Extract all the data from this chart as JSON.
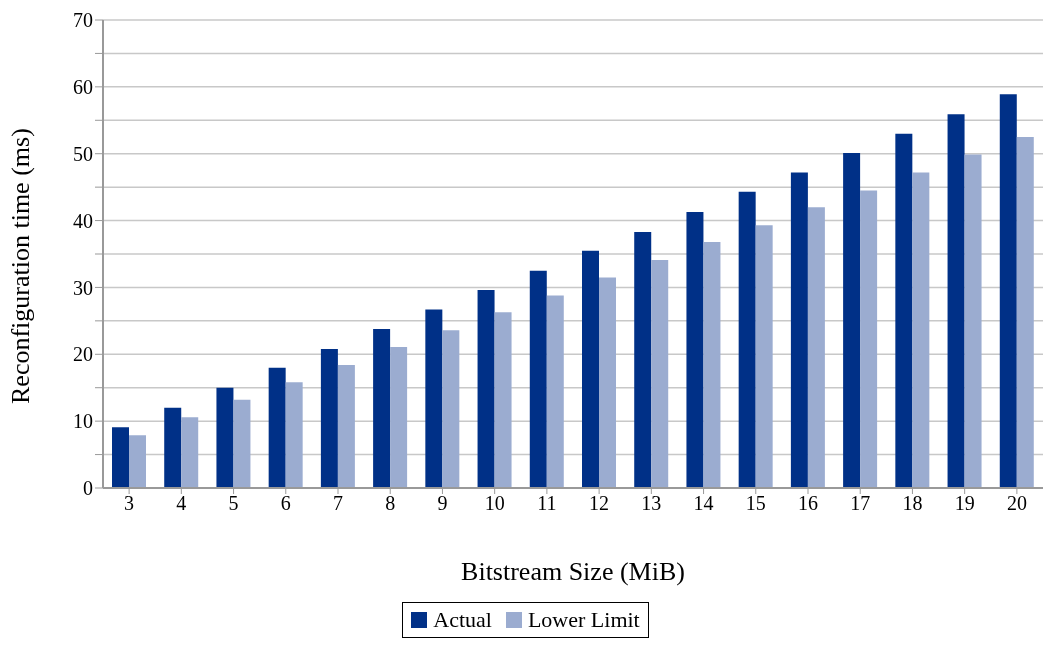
{
  "chart_data": {
    "type": "bar",
    "xlabel": "Bitstream Size (MiB)",
    "ylabel": "Reconfiguration time (ms)",
    "categories": [
      "3",
      "4",
      "5",
      "6",
      "7",
      "8",
      "9",
      "10",
      "11",
      "12",
      "13",
      "14",
      "15",
      "16",
      "17",
      "18",
      "19",
      "20"
    ],
    "series": [
      {
        "name": "Actual",
        "color": "#003087",
        "values": [
          9.1,
          12,
          15,
          18,
          20.8,
          23.8,
          26.7,
          29.6,
          32.5,
          35.5,
          38.3,
          41.3,
          44.3,
          47.2,
          50.1,
          53,
          55.9,
          58.9
        ]
      },
      {
        "name": "Lower Limit",
        "color": "#9bacd0",
        "values": [
          7.9,
          10.6,
          13.2,
          15.8,
          18.4,
          21.1,
          23.6,
          26.3,
          28.8,
          31.5,
          34.1,
          36.8,
          39.3,
          42,
          44.5,
          47.2,
          49.9,
          52.5
        ]
      }
    ],
    "ylim": [
      0,
      70
    ],
    "yticks": [
      0,
      {
        "value": 5,
        "label": null
      },
      10,
      {
        "value": 15,
        "label": null
      },
      20,
      {
        "value": 25,
        "label": null
      },
      30,
      {
        "value": 35,
        "label": null
      },
      40,
      {
        "value": 45,
        "label": null
      },
      50,
      {
        "value": 55,
        "label": null
      },
      60,
      {
        "value": 65,
        "label": null
      },
      70
    ],
    "grid": "y",
    "legend": "bottom"
  }
}
